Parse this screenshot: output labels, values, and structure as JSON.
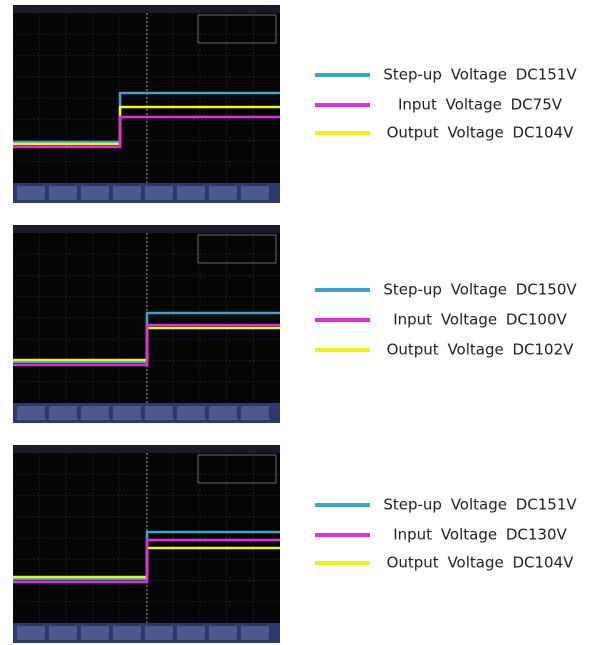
{
  "panels": [
    {
      "legend": [
        {
          "label": "Step-up Voltage DC151V",
          "color": "#3aa6cc"
        },
        {
          "label": "Input Voltage DC75V",
          "color": "#e02ee0"
        },
        {
          "label": "Output Voltage DC104V",
          "color": "#f2f21a"
        }
      ]
    },
    {
      "legend": [
        {
          "label": "Step-up Voltage DC150V",
          "color": "#3aa6cc"
        },
        {
          "label": "Input Voltage DC100V",
          "color": "#e02ee0"
        },
        {
          "label": "Output Voltage DC102V",
          "color": "#f2f21a"
        }
      ]
    },
    {
      "legend": [
        {
          "label": "Step-up Voltage DC151V",
          "color": "#3aa6cc"
        },
        {
          "label": "Input Voltage DC130V",
          "color": "#e02ee0"
        },
        {
          "label": "Output Voltage DC104V",
          "color": "#f2f21a"
        }
      ]
    }
  ]
}
